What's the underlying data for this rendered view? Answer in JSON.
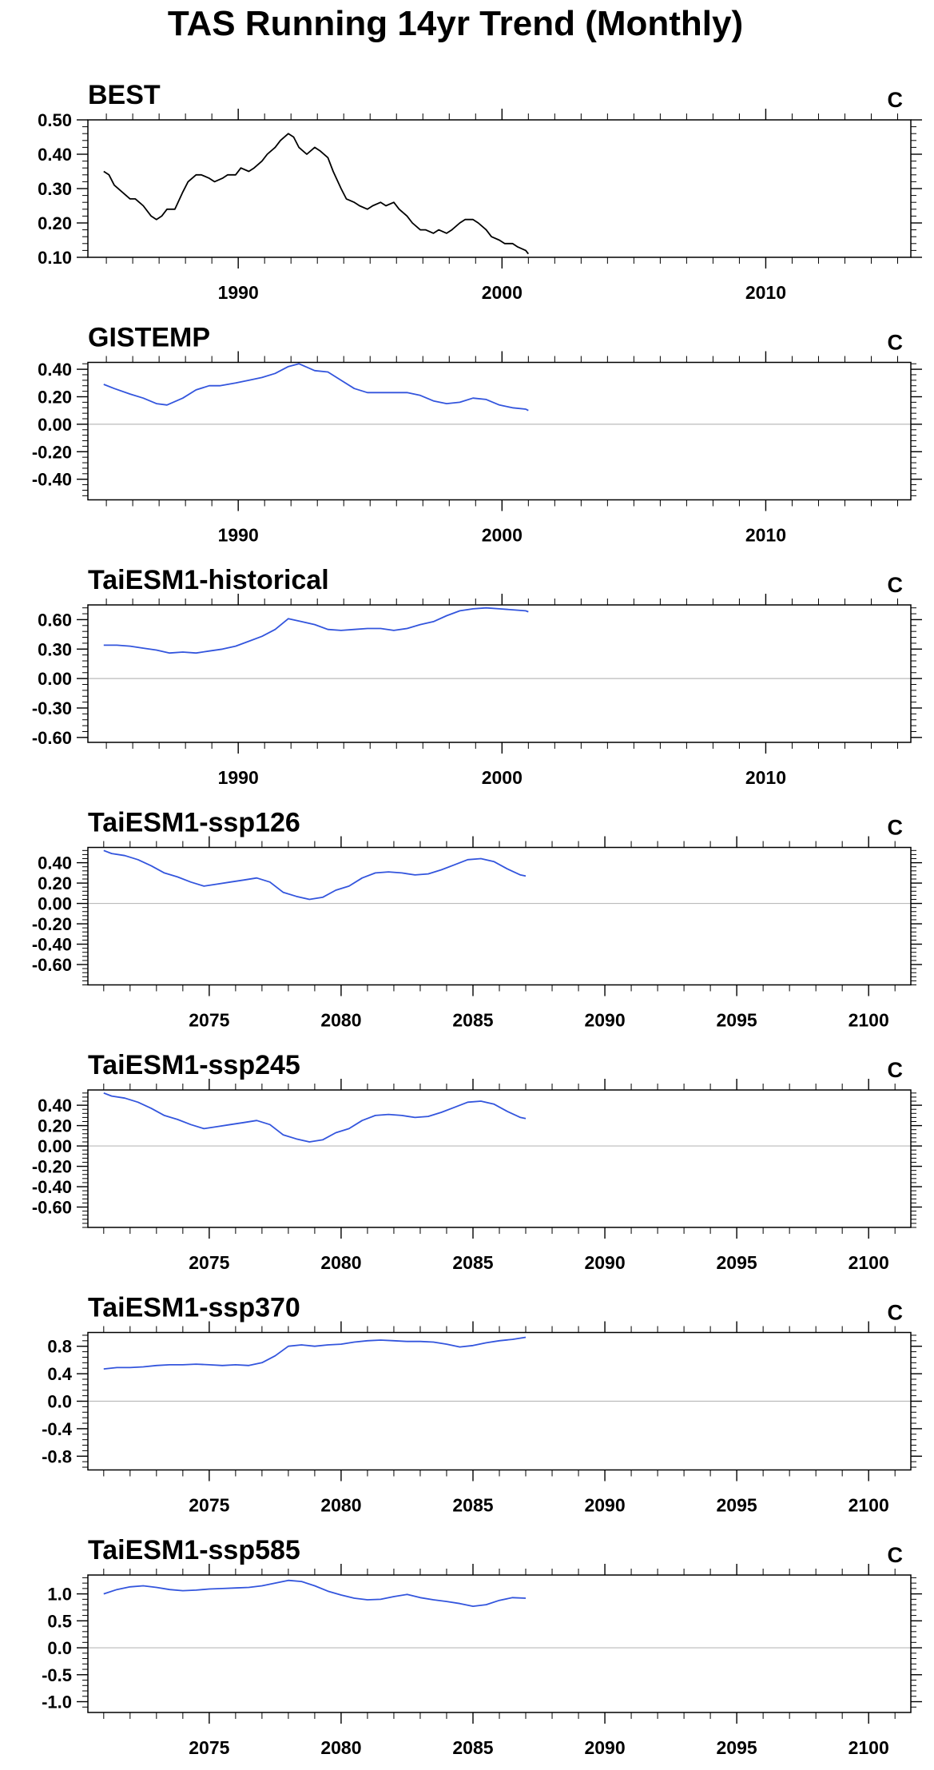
{
  "figure": {
    "title": "TAS Running 14yr Trend (Monthly)"
  },
  "chart_data": [
    {
      "type": "line",
      "title": "BEST",
      "units": "C",
      "xlim": [
        1984.3,
        2015.5
      ],
      "ylim": [
        0.1,
        0.5
      ],
      "xticks": [
        1990,
        2000,
        2010
      ],
      "yticks": [
        0.1,
        0.2,
        0.3,
        0.4,
        0.5
      ],
      "ytick_labels": [
        "0.10",
        "0.20",
        "0.30",
        "0.40",
        "0.50"
      ],
      "zero_line": false,
      "series": [
        {
          "color": "#000000",
          "x": [
            1984.9,
            1985.1,
            1985.3,
            1985.6,
            1985.9,
            1986.1,
            1986.4,
            1986.7,
            1986.9,
            1987.1,
            1987.3,
            1987.6,
            1987.9,
            1988.1,
            1988.4,
            1988.6,
            1988.9,
            1989.1,
            1989.4,
            1989.6,
            1989.9,
            1990.1,
            1990.4,
            1990.6,
            1990.9,
            1991.1,
            1991.4,
            1991.6,
            1991.9,
            1992.1,
            1992.3,
            1992.6,
            1992.9,
            1993.1,
            1993.4,
            1993.6,
            1993.9,
            1994.1,
            1994.4,
            1994.6,
            1994.9,
            1995.1,
            1995.4,
            1995.6,
            1995.9,
            1996.1,
            1996.4,
            1996.6,
            1996.9,
            1997.1,
            1997.4,
            1997.6,
            1997.9,
            1998.1,
            1998.4,
            1998.6,
            1998.9,
            1999.1,
            1999.4,
            1999.6,
            1999.9,
            2000.1,
            2000.4,
            2000.6,
            2000.9,
            2001.0
          ],
          "y": [
            0.35,
            0.34,
            0.31,
            0.29,
            0.27,
            0.27,
            0.25,
            0.22,
            0.21,
            0.22,
            0.24,
            0.24,
            0.29,
            0.32,
            0.34,
            0.34,
            0.33,
            0.32,
            0.33,
            0.34,
            0.34,
            0.36,
            0.35,
            0.36,
            0.38,
            0.4,
            0.42,
            0.44,
            0.46,
            0.45,
            0.42,
            0.4,
            0.42,
            0.41,
            0.39,
            0.35,
            0.3,
            0.27,
            0.26,
            0.25,
            0.24,
            0.25,
            0.26,
            0.25,
            0.26,
            0.24,
            0.22,
            0.2,
            0.18,
            0.18,
            0.17,
            0.18,
            0.17,
            0.18,
            0.2,
            0.21,
            0.21,
            0.2,
            0.18,
            0.16,
            0.15,
            0.14,
            0.14,
            0.13,
            0.12,
            0.11
          ]
        }
      ]
    },
    {
      "type": "line",
      "title": "GISTEMP",
      "units": "C",
      "xlim": [
        1984.3,
        2015.5
      ],
      "ylim": [
        -0.55,
        0.45
      ],
      "xticks": [
        1990,
        2000,
        2010
      ],
      "yticks": [
        -0.4,
        -0.2,
        0.0,
        0.2,
        0.4
      ],
      "ytick_labels": [
        "-0.40",
        "-0.20",
        "0.00",
        "0.20",
        "0.40"
      ],
      "zero_line": true,
      "series": [
        {
          "color": "#3355dd",
          "x": [
            1984.9,
            1985.3,
            1985.9,
            1986.4,
            1986.9,
            1987.3,
            1987.9,
            1988.4,
            1988.9,
            1989.3,
            1989.9,
            1990.4,
            1990.9,
            1991.4,
            1991.9,
            1992.3,
            1992.9,
            1993.4,
            1993.9,
            1994.4,
            1994.9,
            1995.4,
            1995.9,
            1996.4,
            1996.9,
            1997.4,
            1997.9,
            1998.4,
            1998.9,
            1999.4,
            1999.9,
            2000.4,
            2000.9,
            2001.0
          ],
          "y": [
            0.29,
            0.26,
            0.22,
            0.19,
            0.15,
            0.14,
            0.19,
            0.25,
            0.28,
            0.28,
            0.3,
            0.32,
            0.34,
            0.37,
            0.42,
            0.44,
            0.39,
            0.38,
            0.32,
            0.26,
            0.23,
            0.23,
            0.23,
            0.23,
            0.21,
            0.17,
            0.15,
            0.16,
            0.19,
            0.18,
            0.14,
            0.12,
            0.11,
            0.1
          ]
        }
      ]
    },
    {
      "type": "line",
      "title": "TaiESM1-historical",
      "units": "C",
      "xlim": [
        1984.3,
        2015.5
      ],
      "ylim": [
        -0.65,
        0.75
      ],
      "xticks": [
        1990,
        2000,
        2010
      ],
      "yticks": [
        -0.6,
        -0.3,
        0.0,
        0.3,
        0.6
      ],
      "ytick_labels": [
        "-0.60",
        "-0.30",
        "0.00",
        "0.30",
        "0.60"
      ],
      "zero_line": true,
      "series": [
        {
          "color": "#3355dd",
          "x": [
            1984.9,
            1985.4,
            1985.9,
            1986.4,
            1986.9,
            1987.4,
            1987.9,
            1988.4,
            1988.9,
            1989.4,
            1989.9,
            1990.4,
            1990.9,
            1991.4,
            1991.9,
            1992.4,
            1992.9,
            1993.4,
            1993.9,
            1994.4,
            1994.9,
            1995.4,
            1995.9,
            1996.4,
            1996.9,
            1997.4,
            1997.9,
            1998.4,
            1998.9,
            1999.4,
            1999.9,
            2000.4,
            2000.9,
            2001.0
          ],
          "y": [
            0.34,
            0.34,
            0.33,
            0.31,
            0.29,
            0.26,
            0.27,
            0.26,
            0.28,
            0.3,
            0.33,
            0.38,
            0.43,
            0.5,
            0.61,
            0.58,
            0.55,
            0.5,
            0.49,
            0.5,
            0.51,
            0.51,
            0.49,
            0.51,
            0.55,
            0.58,
            0.64,
            0.69,
            0.71,
            0.72,
            0.71,
            0.7,
            0.69,
            0.68
          ]
        }
      ]
    },
    {
      "type": "line",
      "title": "TaiESM1-ssp126",
      "units": "C",
      "xlim": [
        2070.4,
        2101.6
      ],
      "ylim": [
        -0.8,
        0.55
      ],
      "xticks": [
        2075,
        2080,
        2085,
        2090,
        2095,
        2100
      ],
      "yticks": [
        -0.6,
        -0.4,
        -0.2,
        0.0,
        0.2,
        0.4
      ],
      "ytick_labels": [
        "-0.60",
        "-0.40",
        "-0.20",
        "0.00",
        "0.20",
        "0.40"
      ],
      "zero_line": true,
      "series": [
        {
          "color": "#3355dd",
          "x": [
            2071.0,
            2071.3,
            2071.8,
            2072.3,
            2072.8,
            2073.3,
            2073.8,
            2074.3,
            2074.8,
            2075.3,
            2075.8,
            2076.3,
            2076.8,
            2077.3,
            2077.8,
            2078.3,
            2078.8,
            2079.3,
            2079.8,
            2080.3,
            2080.8,
            2081.3,
            2081.8,
            2082.3,
            2082.8,
            2083.3,
            2083.8,
            2084.3,
            2084.8,
            2085.3,
            2085.8,
            2086.3,
            2086.8,
            2087.0
          ],
          "y": [
            0.52,
            0.49,
            0.47,
            0.43,
            0.37,
            0.3,
            0.26,
            0.21,
            0.17,
            0.19,
            0.21,
            0.23,
            0.25,
            0.21,
            0.11,
            0.07,
            0.04,
            0.06,
            0.13,
            0.17,
            0.25,
            0.3,
            0.31,
            0.3,
            0.28,
            0.29,
            0.33,
            0.38,
            0.43,
            0.44,
            0.41,
            0.34,
            0.28,
            0.27
          ]
        }
      ]
    },
    {
      "type": "line",
      "title": "TaiESM1-ssp245",
      "units": "C",
      "xlim": [
        2070.4,
        2101.6
      ],
      "ylim": [
        -0.8,
        0.55
      ],
      "xticks": [
        2075,
        2080,
        2085,
        2090,
        2095,
        2100
      ],
      "yticks": [
        -0.6,
        -0.4,
        -0.2,
        0.0,
        0.2,
        0.4
      ],
      "ytick_labels": [
        "-0.60",
        "-0.40",
        "-0.20",
        "0.00",
        "0.20",
        "0.40"
      ],
      "zero_line": true,
      "series": [
        {
          "color": "#3355dd",
          "x": [
            2071.0,
            2071.3,
            2071.8,
            2072.3,
            2072.8,
            2073.3,
            2073.8,
            2074.3,
            2074.8,
            2075.3,
            2075.8,
            2076.3,
            2076.8,
            2077.3,
            2077.8,
            2078.3,
            2078.8,
            2079.3,
            2079.8,
            2080.3,
            2080.8,
            2081.3,
            2081.8,
            2082.3,
            2082.8,
            2083.3,
            2083.8,
            2084.3,
            2084.8,
            2085.3,
            2085.8,
            2086.3,
            2086.8,
            2087.0
          ],
          "y": [
            0.52,
            0.49,
            0.47,
            0.43,
            0.37,
            0.3,
            0.26,
            0.21,
            0.17,
            0.19,
            0.21,
            0.23,
            0.25,
            0.21,
            0.11,
            0.07,
            0.04,
            0.06,
            0.13,
            0.17,
            0.25,
            0.3,
            0.31,
            0.3,
            0.28,
            0.29,
            0.33,
            0.38,
            0.43,
            0.44,
            0.41,
            0.34,
            0.28,
            0.27
          ]
        }
      ]
    },
    {
      "type": "line",
      "title": "TaiESM1-ssp370",
      "units": "C",
      "xlim": [
        2070.4,
        2101.6
      ],
      "ylim": [
        -1.0,
        1.0
      ],
      "xticks": [
        2075,
        2080,
        2085,
        2090,
        2095,
        2100
      ],
      "yticks": [
        -0.8,
        -0.4,
        0.0,
        0.4,
        0.8
      ],
      "ytick_labels": [
        "-0.8",
        "-0.4",
        "0.0",
        "0.4",
        "0.8"
      ],
      "zero_line": true,
      "series": [
        {
          "color": "#3355dd",
          "x": [
            2071.0,
            2071.5,
            2072.0,
            2072.5,
            2073.0,
            2073.5,
            2074.0,
            2074.5,
            2075.0,
            2075.5,
            2076.0,
            2076.5,
            2077.0,
            2077.5,
            2078.0,
            2078.5,
            2079.0,
            2079.5,
            2080.0,
            2080.5,
            2081.0,
            2081.5,
            2082.0,
            2082.5,
            2083.0,
            2083.5,
            2084.0,
            2084.5,
            2085.0,
            2085.5,
            2086.0,
            2086.5,
            2087.0
          ],
          "y": [
            0.47,
            0.49,
            0.49,
            0.5,
            0.52,
            0.53,
            0.53,
            0.54,
            0.53,
            0.52,
            0.53,
            0.52,
            0.56,
            0.66,
            0.8,
            0.82,
            0.8,
            0.82,
            0.83,
            0.86,
            0.88,
            0.89,
            0.88,
            0.87,
            0.87,
            0.86,
            0.83,
            0.79,
            0.81,
            0.85,
            0.88,
            0.9,
            0.93
          ]
        }
      ]
    },
    {
      "type": "line",
      "title": "TaiESM1-ssp585",
      "units": "C",
      "xlim": [
        2070.4,
        2101.6
      ],
      "ylim": [
        -1.2,
        1.35
      ],
      "xticks": [
        2075,
        2080,
        2085,
        2090,
        2095,
        2100
      ],
      "yticks": [
        -1.0,
        -0.5,
        0.0,
        0.5,
        1.0
      ],
      "ytick_labels": [
        "-1.0",
        "-0.5",
        "0.0",
        "0.5",
        "1.0"
      ],
      "zero_line": true,
      "series": [
        {
          "color": "#3355dd",
          "x": [
            2071.0,
            2071.5,
            2072.0,
            2072.5,
            2073.0,
            2073.5,
            2074.0,
            2074.5,
            2075.0,
            2075.5,
            2076.0,
            2076.5,
            2077.0,
            2077.5,
            2078.0,
            2078.5,
            2079.0,
            2079.5,
            2080.0,
            2080.5,
            2081.0,
            2081.5,
            2082.0,
            2082.5,
            2083.0,
            2083.5,
            2084.0,
            2084.5,
            2085.0,
            2085.5,
            2086.0,
            2086.5,
            2087.0
          ],
          "y": [
            1.0,
            1.08,
            1.13,
            1.15,
            1.12,
            1.08,
            1.06,
            1.07,
            1.09,
            1.1,
            1.11,
            1.12,
            1.15,
            1.2,
            1.25,
            1.23,
            1.15,
            1.05,
            0.98,
            0.92,
            0.89,
            0.9,
            0.95,
            0.99,
            0.93,
            0.89,
            0.86,
            0.82,
            0.77,
            0.8,
            0.88,
            0.93,
            0.92
          ]
        }
      ]
    }
  ]
}
